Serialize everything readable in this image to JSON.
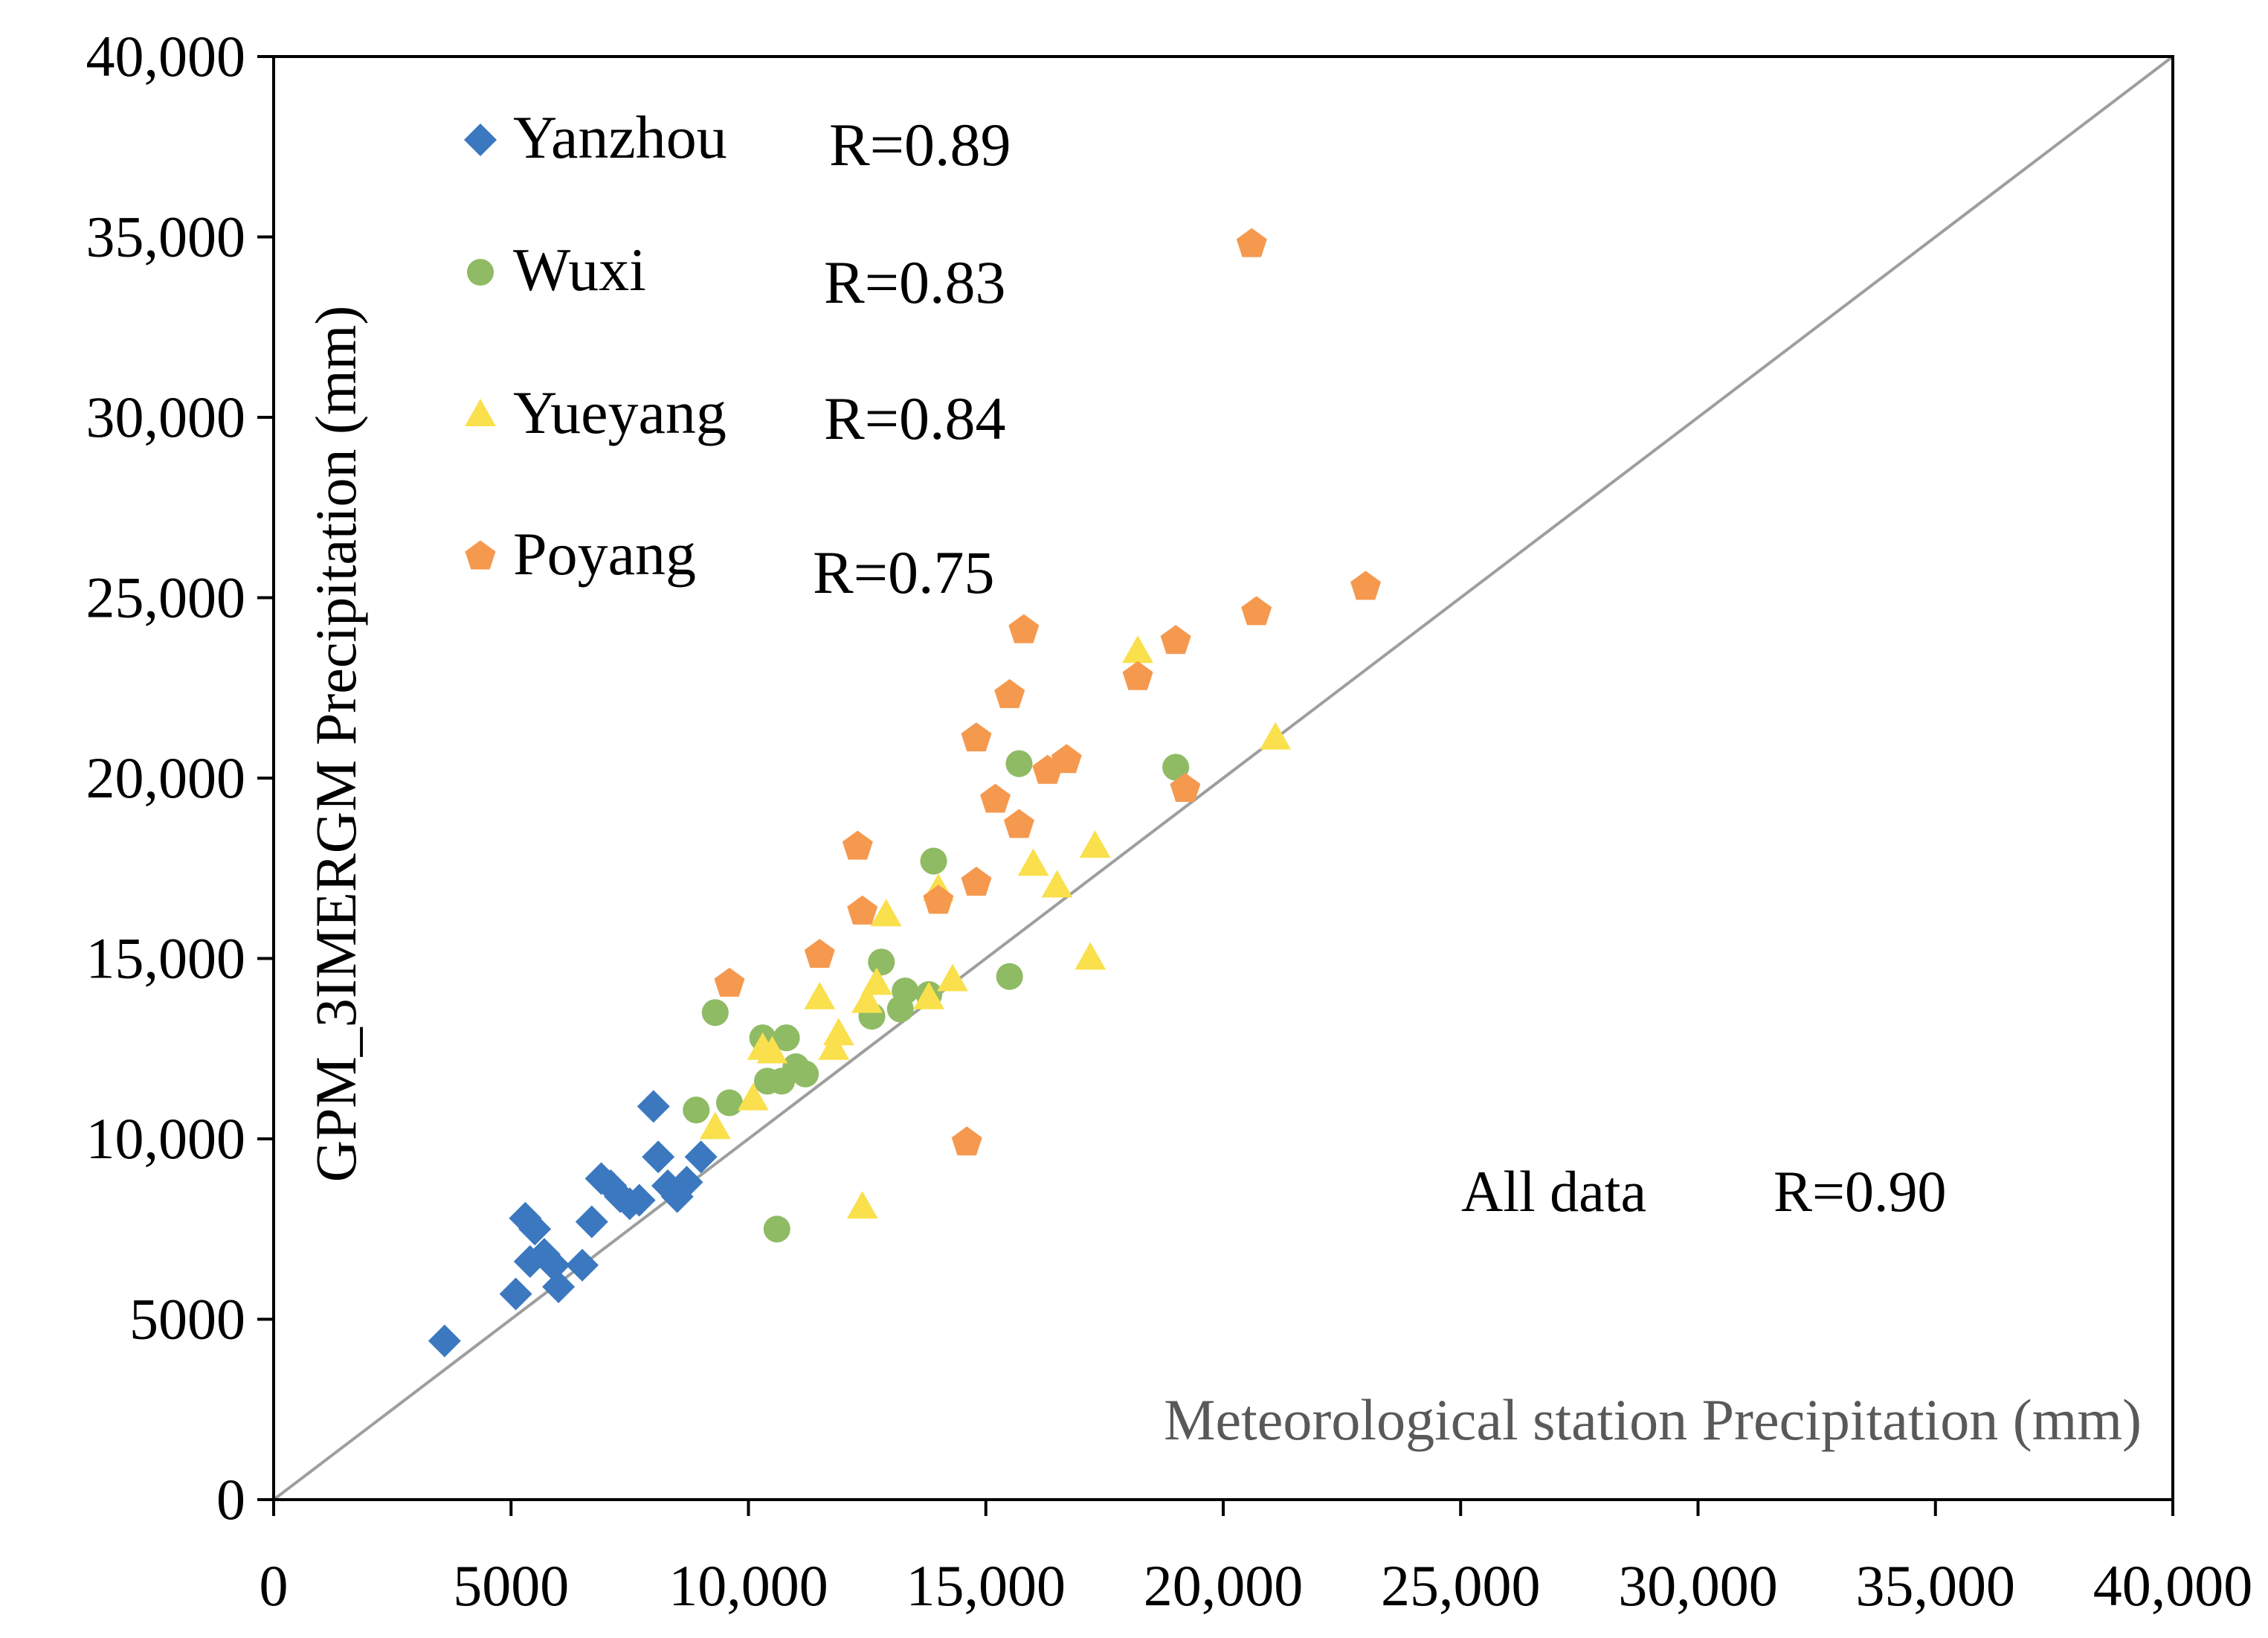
{
  "chart_data": {
    "type": "scatter",
    "title": "",
    "xlabel": "Meteorological station Precipitation  (mm)",
    "ylabel": "GPM_3IMERGM Precipitation (mm)",
    "xlim": [
      0,
      40000
    ],
    "ylim": [
      0,
      40000
    ],
    "x_ticks": [
      0,
      5000,
      10000,
      15000,
      20000,
      25000,
      30000,
      35000,
      40000
    ],
    "x_tick_labels": [
      "0",
      "5000",
      "10,000",
      "15,000",
      "20,000",
      "25,000",
      "30,000",
      "35,000",
      "40,000"
    ],
    "y_ticks": [
      0,
      5000,
      10000,
      15000,
      20000,
      25000,
      30000,
      35000,
      40000
    ],
    "y_tick_labels": [
      "0",
      "5000",
      "10,000",
      "15,000",
      "20,000",
      "25,000",
      "30,000",
      "35,000",
      "40,000"
    ],
    "grid": false,
    "legend_position": "top-left",
    "reference_line": {
      "type": "1:1",
      "color": "#9e9e9e"
    },
    "annotation": {
      "label": "All data",
      "r_text": "R=0.90"
    },
    "series": [
      {
        "name": "Yanzhou",
        "r_text": "R=0.89",
        "marker": "diamond",
        "color": "#3b78bf",
        "points": [
          [
            3600,
            4400
          ],
          [
            5100,
            5700
          ],
          [
            5300,
            7800
          ],
          [
            5400,
            6600
          ],
          [
            5500,
            7500
          ],
          [
            5700,
            6800
          ],
          [
            5900,
            6500
          ],
          [
            6000,
            5900
          ],
          [
            6500,
            6500
          ],
          [
            6700,
            7700
          ],
          [
            6900,
            8900
          ],
          [
            7100,
            8700
          ],
          [
            7300,
            8400
          ],
          [
            7500,
            8200
          ],
          [
            7700,
            8300
          ],
          [
            8000,
            10900
          ],
          [
            8100,
            9500
          ],
          [
            8300,
            8700
          ],
          [
            8500,
            8400
          ],
          [
            8700,
            8800
          ],
          [
            9000,
            9500
          ]
        ]
      },
      {
        "name": "Wuxi",
        "r_text": "R=0.83",
        "marker": "circle",
        "color": "#8fbb64",
        "points": [
          [
            8900,
            10800
          ],
          [
            9300,
            13500
          ],
          [
            9600,
            11000
          ],
          [
            10300,
            12800
          ],
          [
            10400,
            11600
          ],
          [
            10600,
            7500
          ],
          [
            10700,
            11600
          ],
          [
            10800,
            12800
          ],
          [
            11000,
            12000
          ],
          [
            11200,
            11800
          ],
          [
            12600,
            13400
          ],
          [
            12800,
            14900
          ],
          [
            13200,
            13600
          ],
          [
            13300,
            14100
          ],
          [
            13800,
            14000
          ],
          [
            13900,
            17700
          ],
          [
            15500,
            14500
          ],
          [
            15700,
            20400
          ],
          [
            19000,
            20300
          ]
        ]
      },
      {
        "name": "Yueyang",
        "r_text": "R=0.84",
        "marker": "triangle",
        "color": "#f9e04c",
        "points": [
          [
            9300,
            10300
          ],
          [
            10100,
            11100
          ],
          [
            10300,
            12500
          ],
          [
            10500,
            12400
          ],
          [
            11500,
            13900
          ],
          [
            11800,
            12500
          ],
          [
            11900,
            12900
          ],
          [
            12400,
            8100
          ],
          [
            12500,
            13800
          ],
          [
            12700,
            14300
          ],
          [
            12900,
            16200
          ],
          [
            13800,
            13900
          ],
          [
            14000,
            16900
          ],
          [
            14300,
            14400
          ],
          [
            16000,
            17600
          ],
          [
            16500,
            17000
          ],
          [
            17200,
            15000
          ],
          [
            17300,
            18100
          ],
          [
            18200,
            23500
          ],
          [
            21100,
            21100
          ]
        ]
      },
      {
        "name": "Poyang",
        "r_text": "R=0.75",
        "marker": "pentagon",
        "color": "#f5994f",
        "points": [
          [
            9600,
            14300
          ],
          [
            11500,
            15100
          ],
          [
            12300,
            18100
          ],
          [
            12400,
            16300
          ],
          [
            14000,
            16600
          ],
          [
            14600,
            9900
          ],
          [
            14800,
            21100
          ],
          [
            14800,
            17100
          ],
          [
            15200,
            19400
          ],
          [
            15500,
            22300
          ],
          [
            15700,
            18700
          ],
          [
            15800,
            24100
          ],
          [
            16300,
            20200
          ],
          [
            16700,
            20500
          ],
          [
            18200,
            22800
          ],
          [
            19000,
            23800
          ],
          [
            19200,
            19700
          ],
          [
            20600,
            34800
          ],
          [
            20700,
            24600
          ],
          [
            23000,
            25300
          ]
        ]
      }
    ]
  }
}
